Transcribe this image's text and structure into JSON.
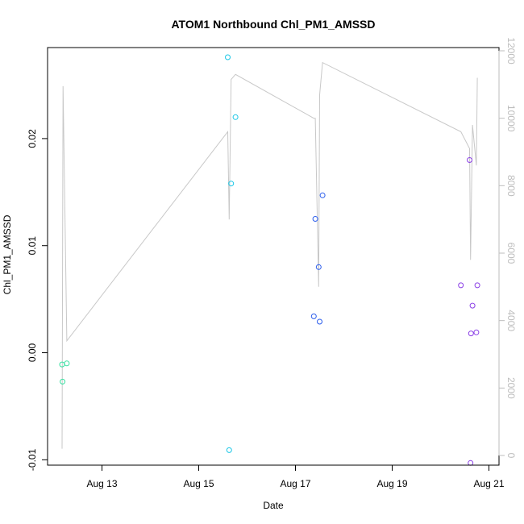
{
  "chart_data": {
    "type": "scatter",
    "title": "ATOM1 Northbound Chl_PM1_AMSSD",
    "xlabel": "Date",
    "ylabel": "Chl_PM1_AMSSD",
    "xlim": [
      "2023-08-11 21:00",
      "2023-08-21 05:00"
    ],
    "ylim": [
      -0.0105,
      0.0285
    ],
    "y2lim": [
      0,
      12000
    ],
    "x_ticks": [
      {
        "value": "2023-08-13 00:00",
        "label": "Aug 13"
      },
      {
        "value": "2023-08-15 00:00",
        "label": "Aug 15"
      },
      {
        "value": "2023-08-17 00:00",
        "label": "Aug 17"
      },
      {
        "value": "2023-08-19 00:00",
        "label": "Aug 19"
      },
      {
        "value": "2023-08-21 00:00",
        "label": "Aug 21"
      }
    ],
    "y_ticks": [
      {
        "value": -0.01,
        "label": "-0.01"
      },
      {
        "value": 0.0,
        "label": "0.00"
      },
      {
        "value": 0.01,
        "label": "0.01"
      },
      {
        "value": 0.02,
        "label": "0.02"
      }
    ],
    "y2_ticks": [
      {
        "value": 0,
        "label": "0"
      },
      {
        "value": 2000,
        "label": "2000"
      },
      {
        "value": 4000,
        "label": "4000"
      },
      {
        "value": 6000,
        "label": "6000"
      },
      {
        "value": 8000,
        "label": "8000"
      },
      {
        "value": 10000,
        "label": "10000"
      },
      {
        "value": 12000,
        "label": "12000"
      }
    ],
    "grid": false,
    "line_color": "#c8c8c8",
    "point_groups": [
      {
        "color": "#35e0a0",
        "points": [
          {
            "x": "2023-08-12 04:12",
            "y": -0.0011
          },
          {
            "x": "2023-08-12 04:26",
            "y": -0.0027
          },
          {
            "x": "2023-08-12 06:34",
            "y": -0.001
          }
        ]
      },
      {
        "color": "#19c6e6",
        "points": [
          {
            "x": "2023-08-15 14:24",
            "y": 0.0276
          },
          {
            "x": "2023-08-15 15:07",
            "y": -0.0091
          },
          {
            "x": "2023-08-15 16:05",
            "y": 0.0158
          },
          {
            "x": "2023-08-15 18:14",
            "y": 0.022
          }
        ]
      },
      {
        "color": "#2a5cec",
        "points": [
          {
            "x": "2023-08-17 09:07",
            "y": 0.0034
          },
          {
            "x": "2023-08-17 09:50",
            "y": 0.0125
          },
          {
            "x": "2023-08-17 11:31",
            "y": 0.008
          },
          {
            "x": "2023-08-17 12:00",
            "y": 0.0029
          },
          {
            "x": "2023-08-17 13:26",
            "y": 0.0147
          }
        ]
      },
      {
        "color": "#8a3ee6",
        "points": [
          {
            "x": "2023-08-20 10:05",
            "y": 0.0063
          },
          {
            "x": "2023-08-20 14:24",
            "y": 0.018
          },
          {
            "x": "2023-08-20 14:53",
            "y": -0.0103
          },
          {
            "x": "2023-08-20 15:07",
            "y": 0.0018
          },
          {
            "x": "2023-08-20 15:50",
            "y": 0.0044
          },
          {
            "x": "2023-08-20 17:46",
            "y": 0.0019
          },
          {
            "x": "2023-08-20 18:14",
            "y": 0.0063
          }
        ]
      }
    ],
    "line_series": [
      {
        "x": "2023-08-12 04:12",
        "y2": 200
      },
      {
        "x": "2023-08-12 04:41",
        "y2": 10950
      },
      {
        "x": "2023-08-12 06:34",
        "y2": 3400
      },
      {
        "x": "2023-08-15 14:24",
        "y2": 9600
      },
      {
        "x": "2023-08-15 15:07",
        "y2": 7000
      },
      {
        "x": "2023-08-15 16:05",
        "y2": 11150
      },
      {
        "x": "2023-08-15 18:14",
        "y2": 11300
      },
      {
        "x": "2023-08-17 09:07",
        "y2": 10000
      },
      {
        "x": "2023-08-17 09:50",
        "y2": 10000
      },
      {
        "x": "2023-08-17 11:31",
        "y2": 5000
      },
      {
        "x": "2023-08-17 12:00",
        "y2": 10700
      },
      {
        "x": "2023-08-17 13:26",
        "y2": 11650
      },
      {
        "x": "2023-08-20 10:05",
        "y2": 9600
      },
      {
        "x": "2023-08-20 14:24",
        "y2": 9100
      },
      {
        "x": "2023-08-20 14:53",
        "y2": 5800
      },
      {
        "x": "2023-08-20 15:50",
        "y2": 9800
      },
      {
        "x": "2023-08-20 17:46",
        "y2": 8600
      },
      {
        "x": "2023-08-20 18:14",
        "y2": 11200
      }
    ]
  }
}
